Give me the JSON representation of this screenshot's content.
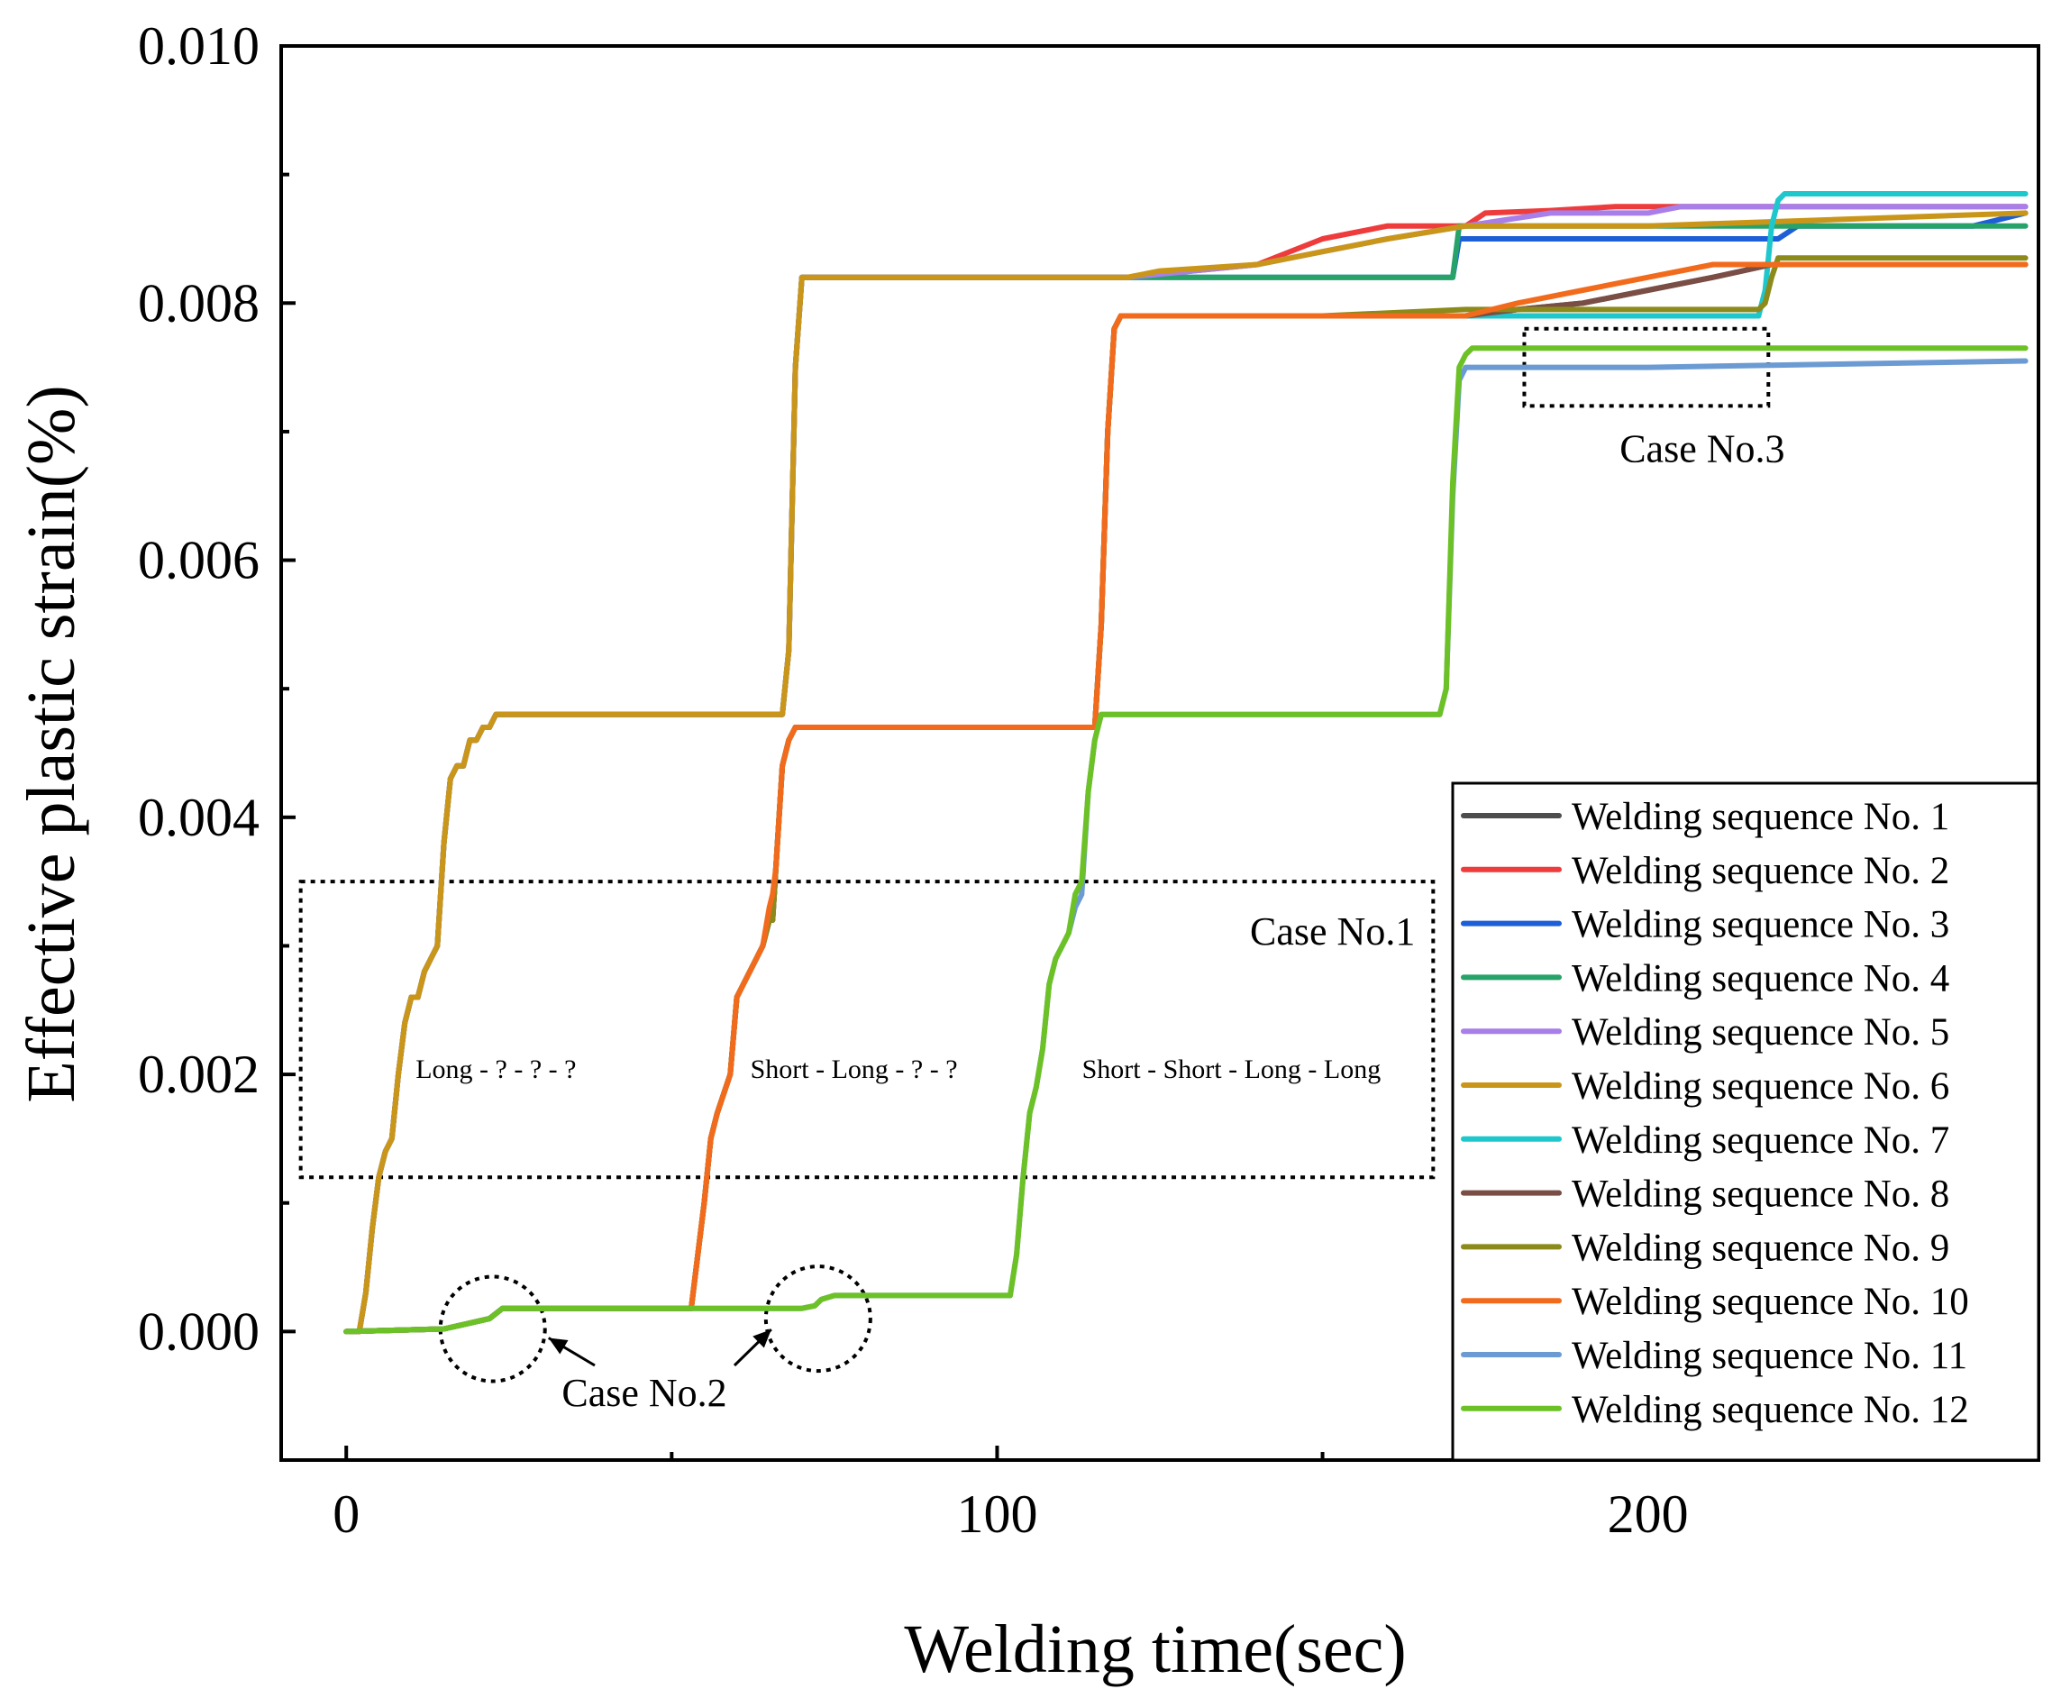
{
  "chart_data": {
    "type": "line",
    "xlabel": "Welding time(sec)",
    "ylabel": "Effective plastic strain(%)",
    "xlim": [
      -10,
      260
    ],
    "ylim": [
      -0.001,
      0.01
    ],
    "xticks": [
      0,
      100,
      200
    ],
    "xtick_labels": [
      "0",
      "100",
      "200"
    ],
    "xminor": [
      50,
      150,
      250
    ],
    "yticks": [
      0,
      0.002,
      0.004,
      0.006,
      0.008,
      0.01
    ],
    "ytick_labels": [
      "0.000",
      "0.002",
      "0.004",
      "0.006",
      "0.008",
      "0.010"
    ],
    "yminor": [
      -0.001,
      0.001,
      0.003,
      0.005,
      0.007,
      0.009
    ],
    "legend_position": "bottom-right",
    "annotations": {
      "case1": {
        "label": "Case No.1",
        "x_range": [
          -7,
          167
        ],
        "y_range": [
          0.0012,
          0.0035
        ]
      },
      "case1_texts": [
        {
          "text": "Long - ? - ? - ?",
          "x": 23,
          "y": 0.00205
        },
        {
          "text": "Short - Long - ? - ?",
          "x": 78,
          "y": 0.00205
        },
        {
          "text": "Short - Short - Long - Long",
          "x": 136,
          "y": 0.00205
        }
      ],
      "case2": {
        "label": "Case No.2",
        "circles": [
          {
            "x": 22.5,
            "y": 2e-05
          },
          {
            "x": 72.5,
            "y": 0.0001
          }
        ]
      },
      "case3": {
        "label": "Case No.3",
        "x_range": [
          181,
          218.5
        ],
        "y_range": [
          0.0072,
          0.0078
        ]
      }
    },
    "series": [
      {
        "name": "Welding sequence No. 1",
        "color": "#4d4d4d",
        "x": [
          0,
          15,
          22,
          24,
          53,
          55,
          56,
          57,
          59,
          60,
          61,
          62,
          64,
          65,
          65.5,
          66,
          67,
          68,
          69,
          70,
          115,
          116,
          117,
          118,
          119,
          120,
          121,
          122,
          150,
          165,
          172,
          180,
          190,
          200,
          210,
          219,
          225,
          240,
          258
        ],
        "y": [
          0,
          2e-05,
          0.0001,
          0.00018,
          0.00018,
          0.001,
          0.0015,
          0.0017,
          0.002,
          0.0026,
          0.0027,
          0.0028,
          0.003,
          0.0032,
          0.0032,
          0.0036,
          0.0044,
          0.0046,
          0.0047,
          0.0047,
          0.0047,
          0.0055,
          0.007,
          0.0078,
          0.0079,
          0.0079,
          0.0079,
          0.0079,
          0.0079,
          0.0079,
          0.0079,
          0.00795,
          0.008,
          0.0081,
          0.0082,
          0.0083,
          0.0083,
          0.0083,
          0.0083
        ]
      },
      {
        "name": "Welding sequence No. 2",
        "color": "#ee3b3b",
        "x": [
          0,
          2,
          3,
          4,
          5,
          6,
          7,
          8,
          9,
          10,
          11,
          12,
          13,
          14,
          15,
          16,
          17,
          18,
          19,
          20,
          21,
          22,
          23,
          24,
          25,
          67,
          68,
          69,
          70,
          71,
          72,
          73,
          100,
          120,
          140,
          150,
          160,
          172,
          175,
          185,
          195,
          205,
          215,
          225,
          258
        ],
        "y": [
          0,
          0,
          0.0003,
          0.0008,
          0.0012,
          0.0014,
          0.0015,
          0.002,
          0.0024,
          0.0026,
          0.0026,
          0.0028,
          0.0029,
          0.003,
          0.0038,
          0.0043,
          0.0044,
          0.0044,
          0.0046,
          0.0046,
          0.0047,
          0.0047,
          0.0048,
          0.0048,
          0.0048,
          0.0048,
          0.0053,
          0.0075,
          0.0082,
          0.0082,
          0.0082,
          0.0082,
          0.0082,
          0.0082,
          0.0083,
          0.0085,
          0.0086,
          0.0086,
          0.0087,
          0.00872,
          0.00875,
          0.00875,
          0.00875,
          0.00875,
          0.00875
        ]
      },
      {
        "name": "Welding sequence No. 3",
        "color": "#1c5fd6",
        "x": [
          0,
          2,
          3,
          4,
          5,
          6,
          7,
          8,
          9,
          10,
          11,
          12,
          13,
          14,
          15,
          16,
          17,
          18,
          19,
          20,
          21,
          22,
          23,
          24,
          25,
          67,
          68,
          69,
          70,
          71,
          72,
          73,
          100,
          169,
          170,
          171,
          172,
          180,
          200,
          220,
          223,
          240,
          250,
          258
        ],
        "y": [
          0,
          0,
          0.0003,
          0.0008,
          0.0012,
          0.0014,
          0.0015,
          0.002,
          0.0024,
          0.0026,
          0.0026,
          0.0028,
          0.0029,
          0.003,
          0.0038,
          0.0043,
          0.0044,
          0.0044,
          0.0046,
          0.0046,
          0.0047,
          0.0047,
          0.0048,
          0.0048,
          0.0048,
          0.0048,
          0.0053,
          0.0075,
          0.0082,
          0.0082,
          0.0082,
          0.0082,
          0.0082,
          0.0082,
          0.0082,
          0.0085,
          0.0085,
          0.0085,
          0.0085,
          0.0085,
          0.0086,
          0.0086,
          0.0086,
          0.0087
        ]
      },
      {
        "name": "Welding sequence No. 4",
        "color": "#27a36a",
        "x": [
          0,
          2,
          3,
          4,
          5,
          6,
          7,
          8,
          9,
          10,
          11,
          12,
          13,
          14,
          15,
          16,
          17,
          18,
          19,
          20,
          21,
          22,
          23,
          24,
          25,
          67,
          68,
          69,
          70,
          71,
          72,
          73,
          100,
          169,
          170,
          171,
          172,
          200,
          258
        ],
        "y": [
          0,
          0,
          0.0003,
          0.0008,
          0.0012,
          0.0014,
          0.0015,
          0.002,
          0.0024,
          0.0026,
          0.0026,
          0.0028,
          0.0029,
          0.003,
          0.0038,
          0.0043,
          0.0044,
          0.0044,
          0.0046,
          0.0046,
          0.0047,
          0.0047,
          0.0048,
          0.0048,
          0.0048,
          0.0048,
          0.0053,
          0.0075,
          0.0082,
          0.0082,
          0.0082,
          0.0082,
          0.0082,
          0.0082,
          0.0082,
          0.0086,
          0.0086,
          0.0086,
          0.0086
        ]
      },
      {
        "name": "Welding sequence No. 5",
        "color": "#a87ee8",
        "x": [
          0,
          2,
          3,
          4,
          5,
          6,
          7,
          8,
          9,
          10,
          11,
          12,
          13,
          14,
          15,
          16,
          17,
          18,
          19,
          20,
          21,
          22,
          23,
          24,
          25,
          67,
          68,
          69,
          70,
          71,
          72,
          73,
          100,
          120,
          140,
          150,
          160,
          172,
          185,
          200,
          205,
          258
        ],
        "y": [
          0,
          0,
          0.0003,
          0.0008,
          0.0012,
          0.0014,
          0.0015,
          0.002,
          0.0024,
          0.0026,
          0.0026,
          0.0028,
          0.0029,
          0.003,
          0.0038,
          0.0043,
          0.0044,
          0.0044,
          0.0046,
          0.0046,
          0.0047,
          0.0047,
          0.0048,
          0.0048,
          0.0048,
          0.0048,
          0.0053,
          0.0075,
          0.0082,
          0.0082,
          0.0082,
          0.0082,
          0.0082,
          0.0082,
          0.0083,
          0.0084,
          0.0085,
          0.0086,
          0.0087,
          0.0087,
          0.00875,
          0.00875
        ]
      },
      {
        "name": "Welding sequence No. 6",
        "color": "#c9961a",
        "x": [
          0,
          2,
          3,
          4,
          5,
          6,
          7,
          8,
          9,
          10,
          11,
          12,
          13,
          14,
          15,
          16,
          17,
          18,
          19,
          20,
          21,
          22,
          23,
          24,
          25,
          67,
          68,
          69,
          70,
          71,
          72,
          73,
          100,
          120,
          125,
          140,
          150,
          160,
          172,
          200,
          258
        ],
        "y": [
          0,
          0,
          0.0003,
          0.0008,
          0.0012,
          0.0014,
          0.0015,
          0.002,
          0.0024,
          0.0026,
          0.0026,
          0.0028,
          0.0029,
          0.003,
          0.0038,
          0.0043,
          0.0044,
          0.0044,
          0.0046,
          0.0046,
          0.0047,
          0.0047,
          0.0048,
          0.0048,
          0.0048,
          0.0048,
          0.0053,
          0.0075,
          0.0082,
          0.0082,
          0.0082,
          0.0082,
          0.0082,
          0.0082,
          0.00825,
          0.0083,
          0.0084,
          0.0085,
          0.0086,
          0.0086,
          0.0087
        ]
      },
      {
        "name": "Welding sequence No. 7",
        "color": "#1ec7cc",
        "x": [
          0,
          15,
          22,
          24,
          53,
          55,
          56,
          57,
          59,
          60,
          61,
          62,
          64,
          65,
          65.5,
          66,
          67,
          68,
          69,
          70,
          115,
          116,
          117,
          118,
          119,
          120,
          121,
          122,
          150,
          172,
          200,
          217,
          218,
          219,
          220,
          221,
          222,
          258
        ],
        "y": [
          0,
          2e-05,
          0.0001,
          0.00018,
          0.00018,
          0.001,
          0.0015,
          0.0017,
          0.002,
          0.0026,
          0.0027,
          0.0028,
          0.003,
          0.0032,
          0.0032,
          0.0036,
          0.0044,
          0.0046,
          0.0047,
          0.0047,
          0.0047,
          0.0055,
          0.007,
          0.0078,
          0.0079,
          0.0079,
          0.0079,
          0.0079,
          0.0079,
          0.0079,
          0.0079,
          0.0079,
          0.0081,
          0.0086,
          0.0088,
          0.00885,
          0.00885,
          0.00885
        ]
      },
      {
        "name": "Welding sequence No. 8",
        "color": "#7a4d45",
        "x": [
          0,
          15,
          22,
          24,
          53,
          55,
          56,
          57,
          59,
          60,
          61,
          62,
          64,
          65,
          65.5,
          66,
          67,
          68,
          69,
          70,
          115,
          116,
          117,
          118,
          119,
          120,
          121,
          122,
          150,
          172,
          180,
          190,
          200,
          210,
          219,
          225,
          240,
          258
        ],
        "y": [
          0,
          2e-05,
          0.0001,
          0.00018,
          0.00018,
          0.001,
          0.0015,
          0.0017,
          0.002,
          0.0026,
          0.0027,
          0.0028,
          0.003,
          0.0032,
          0.0032,
          0.0036,
          0.0044,
          0.0046,
          0.0047,
          0.0047,
          0.0047,
          0.0055,
          0.007,
          0.0078,
          0.0079,
          0.0079,
          0.0079,
          0.0079,
          0.0079,
          0.0079,
          0.00795,
          0.008,
          0.0081,
          0.0082,
          0.0083,
          0.0083,
          0.0083,
          0.0083
        ]
      },
      {
        "name": "Welding sequence No. 9",
        "color": "#8c8a1a",
        "x": [
          0,
          15,
          22,
          24,
          53,
          55,
          56,
          57,
          59,
          60,
          61,
          62,
          64,
          65,
          65.5,
          66,
          67,
          68,
          69,
          70,
          115,
          116,
          117,
          118,
          119,
          120,
          121,
          122,
          150,
          172,
          200,
          217,
          218,
          219,
          220,
          221,
          222,
          258
        ],
        "y": [
          0,
          2e-05,
          0.0001,
          0.00018,
          0.00018,
          0.001,
          0.0015,
          0.0017,
          0.002,
          0.0026,
          0.0027,
          0.0028,
          0.003,
          0.0032,
          0.0032,
          0.0036,
          0.0044,
          0.0046,
          0.0047,
          0.0047,
          0.0047,
          0.0055,
          0.007,
          0.0078,
          0.0079,
          0.0079,
          0.0079,
          0.0079,
          0.0079,
          0.00795,
          0.00795,
          0.00795,
          0.008,
          0.0082,
          0.00835,
          0.00835,
          0.00835,
          0.00835
        ]
      },
      {
        "name": "Welding sequence No. 10",
        "color": "#f26b1d",
        "x": [
          0,
          15,
          22,
          24,
          53,
          55,
          56,
          57,
          59,
          60,
          61,
          62,
          64,
          65,
          65.5,
          66,
          67,
          68,
          69,
          70,
          115,
          116,
          117,
          118,
          119,
          120,
          121,
          122,
          150,
          172,
          180,
          190,
          200,
          210,
          219,
          225,
          240,
          258
        ],
        "y": [
          0,
          2e-05,
          0.0001,
          0.00018,
          0.00018,
          0.001,
          0.0015,
          0.0017,
          0.002,
          0.0026,
          0.0027,
          0.0028,
          0.003,
          0.0033,
          0.0034,
          0.0036,
          0.0044,
          0.0046,
          0.0047,
          0.0047,
          0.0047,
          0.0055,
          0.007,
          0.0078,
          0.0079,
          0.0079,
          0.0079,
          0.0079,
          0.0079,
          0.0079,
          0.008,
          0.0081,
          0.0082,
          0.0083,
          0.0083,
          0.0083,
          0.0083,
          0.0083
        ]
      },
      {
        "name": "Welding sequence No. 11",
        "color": "#6b9bd2",
        "x": [
          0,
          15,
          22,
          24,
          60,
          65,
          70,
          72,
          73,
          75,
          102,
          103,
          104,
          105,
          106,
          107,
          108,
          109,
          110,
          111,
          112,
          113,
          114,
          115,
          116,
          117,
          118,
          119,
          120,
          168,
          169,
          170,
          171,
          172,
          173,
          174,
          175,
          200,
          258
        ],
        "y": [
          0,
          2e-05,
          0.0001,
          0.00018,
          0.00018,
          0.00018,
          0.00018,
          0.0002,
          0.00025,
          0.00028,
          0.00028,
          0.0006,
          0.0012,
          0.0017,
          0.0019,
          0.0022,
          0.0027,
          0.0029,
          0.003,
          0.0031,
          0.0033,
          0.0034,
          0.0042,
          0.0046,
          0.0048,
          0.0048,
          0.0048,
          0.0048,
          0.0048,
          0.0048,
          0.005,
          0.0065,
          0.0074,
          0.0075,
          0.0075,
          0.0075,
          0.0075,
          0.0075,
          0.00755
        ]
      },
      {
        "name": "Welding sequence No. 12",
        "color": "#6cc126",
        "x": [
          0,
          15,
          22,
          24,
          60,
          65,
          70,
          72,
          73,
          75,
          102,
          103,
          104,
          105,
          106,
          107,
          108,
          109,
          110,
          111,
          112,
          113,
          114,
          115,
          116,
          117,
          118,
          119,
          120,
          168,
          169,
          170,
          171,
          172,
          173,
          174,
          175,
          200,
          258
        ],
        "y": [
          0,
          2e-05,
          0.0001,
          0.00018,
          0.00018,
          0.00018,
          0.00018,
          0.0002,
          0.00025,
          0.00028,
          0.00028,
          0.0006,
          0.0012,
          0.0017,
          0.0019,
          0.0022,
          0.0027,
          0.0029,
          0.003,
          0.0031,
          0.0034,
          0.0035,
          0.0042,
          0.0046,
          0.0048,
          0.0048,
          0.0048,
          0.0048,
          0.0048,
          0.0048,
          0.005,
          0.0066,
          0.0075,
          0.0076,
          0.00765,
          0.00765,
          0.00765,
          0.00765,
          0.00765
        ]
      }
    ]
  }
}
